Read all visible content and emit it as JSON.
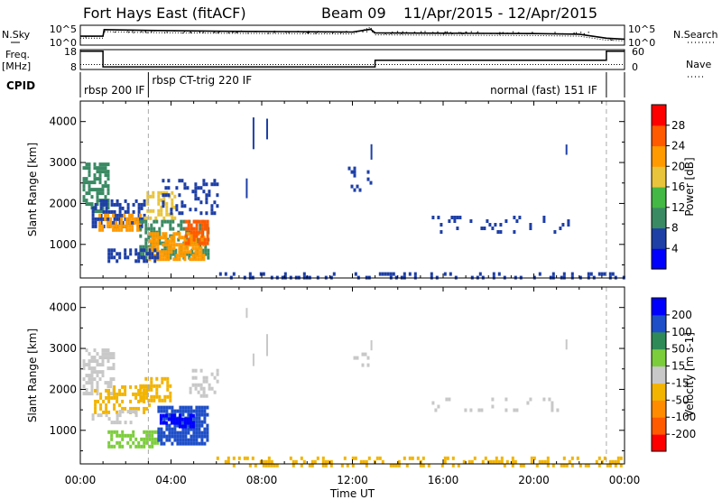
{
  "header": {
    "station": "Fort Hays East (fitACF)",
    "beam": "Beam 09",
    "dates": "11/Apr/2015 - 12/Apr/2015"
  },
  "left_labels": {
    "nsky": "N.Sky",
    "freq_top": "Freq.",
    "freq_unit": "[MHz]",
    "cpid": "CPID"
  },
  "right_labels": {
    "nsearch": "N.Search",
    "nave": "Nave"
  },
  "chart_data": [
    {
      "type": "line",
      "panel": "noise",
      "series": [
        {
          "name": "N.Sky",
          "x": [
            0,
            1,
            1.05,
            3,
            6,
            9,
            12,
            12.8,
            13,
            16,
            20,
            22,
            23.2,
            24
          ],
          "y": [
            0.45,
            0.45,
            0.78,
            0.74,
            0.7,
            0.68,
            0.66,
            0.8,
            0.62,
            0.6,
            0.58,
            0.55,
            0.35,
            0.3
          ]
        },
        {
          "name": "N.Search",
          "x": [
            0,
            1,
            1.05,
            3,
            6,
            9,
            12,
            12.8,
            13,
            16,
            20,
            22,
            23.2,
            24
          ],
          "y": [
            0.35,
            0.35,
            0.68,
            0.63,
            0.6,
            0.58,
            0.56,
            0.9,
            0.52,
            0.5,
            0.48,
            0.45,
            0.25,
            0.22
          ]
        }
      ],
      "yticks_left": [
        "10^5",
        "10^0"
      ],
      "yticks_right": [
        "10^5",
        "10^0"
      ]
    },
    {
      "type": "line",
      "panel": "frequency",
      "series": [
        {
          "name": "Freq.",
          "x": [
            0,
            1,
            1,
            13,
            13,
            23.2,
            23.2,
            24
          ],
          "y": [
            18,
            18,
            8.6,
            8.6,
            12.6,
            12.6,
            18,
            18
          ]
        },
        {
          "name": "Nave",
          "x": [
            0,
            24
          ],
          "y": [
            15,
            15
          ]
        }
      ],
      "yticks_left": [
        18,
        8
      ],
      "yticks_right": [
        60,
        0
      ]
    },
    {
      "type": "table",
      "panel": "cpid",
      "segments": [
        {
          "label": "rbsp 200 IF",
          "start": 0,
          "end": 3
        },
        {
          "label": "rbsp CT-trig 220 IF",
          "start": 3,
          "end": 23.2
        },
        {
          "label": "normal (fast) 151 IF",
          "start": 13,
          "end": 23.2
        }
      ]
    },
    {
      "type": "heatmap",
      "panel": "power",
      "ylabel": "Slant Range [km]",
      "ylim": [
        180,
        4500
      ],
      "yticks": [
        1000,
        2000,
        3000,
        4000
      ],
      "xlim": [
        0,
        24
      ],
      "colorbar": {
        "label": "Power [dB]",
        "ticks": [
          4,
          8,
          12,
          16,
          20,
          24,
          28
        ],
        "colors": [
          "#0000ff",
          "#1e3fa6",
          "#3a8a64",
          "#44b844",
          "#e8c43c",
          "#ff9a00",
          "#ff5a00",
          "#ff0000"
        ]
      },
      "blobs": [
        {
          "x": [
            0.1,
            1.2
          ],
          "y": [
            1800,
            3000
          ],
          "color": "#3a8a64",
          "density": 0.6
        },
        {
          "x": [
            0.5,
            2.8
          ],
          "y": [
            1400,
            2100
          ],
          "color": "#1e3fa6",
          "density": 0.55
        },
        {
          "x": [
            0.8,
            2.6
          ],
          "y": [
            1350,
            1750
          ],
          "color": "#ff9a00",
          "density": 0.7
        },
        {
          "x": [
            2.8,
            4.2
          ],
          "y": [
            1650,
            2300
          ],
          "color": "#e8c43c",
          "density": 0.5
        },
        {
          "x": [
            2.6,
            5.6
          ],
          "y": [
            700,
            1600
          ],
          "color": "#3a8a64",
          "density": 0.55
        },
        {
          "x": [
            3.0,
            5.4
          ],
          "y": [
            650,
            1300
          ],
          "color": "#ff9a00",
          "density": 0.75
        },
        {
          "x": [
            4.6,
            5.6
          ],
          "y": [
            1000,
            1600
          ],
          "color": "#ff5a00",
          "density": 0.7
        },
        {
          "x": [
            1.2,
            3.4
          ],
          "y": [
            550,
            900
          ],
          "color": "#1e3fa6",
          "density": 0.5
        },
        {
          "x": [
            3.6,
            6.0
          ],
          "y": [
            1800,
            2600
          ],
          "color": "#1e3fa6",
          "density": 0.3
        },
        {
          "x": [
            11.8,
            12.8
          ],
          "y": [
            2300,
            2900
          ],
          "color": "#1e3fa6",
          "density": 0.15
        },
        {
          "x": [
            15.5,
            21.5
          ],
          "y": [
            1300,
            1700
          ],
          "color": "#1e3fa6",
          "density": 0.12
        },
        {
          "x": [
            6.0,
            24.0
          ],
          "y": [
            180,
            320
          ],
          "color": "#1e3fa6",
          "density": 0.25
        }
      ]
    },
    {
      "type": "heatmap",
      "panel": "velocity",
      "ylabel": "Slant Range [km]",
      "ylim": [
        180,
        4500
      ],
      "yticks": [
        1000,
        2000,
        3000,
        4000
      ],
      "xlabel": "Time UT",
      "xlim": [
        0,
        24
      ],
      "xticks": [
        "00:00",
        "04:00",
        "08:00",
        "12:00",
        "16:00",
        "20:00",
        "00:00"
      ],
      "colorbar": {
        "label": "Velocity [m s-1]",
        "ticks": [
          -200,
          -100,
          -50,
          -15,
          15,
          50,
          100,
          200
        ],
        "colors": [
          "#ff0000",
          "#ff5a00",
          "#ff8c00",
          "#f2b400",
          "#c8c8c8",
          "#7ccd3c",
          "#2e8b57",
          "#1e4fc8",
          "#0000ff"
        ]
      },
      "blobs": [
        {
          "x": [
            0.1,
            1.5
          ],
          "y": [
            1900,
            3000
          ],
          "color": "#c8c8c8",
          "density": 0.55
        },
        {
          "x": [
            0.6,
            3.0
          ],
          "y": [
            1400,
            2100
          ],
          "color": "#f2b400",
          "density": 0.5
        },
        {
          "x": [
            2.6,
            4.0
          ],
          "y": [
            1700,
            2300
          ],
          "color": "#f2b400",
          "density": 0.6
        },
        {
          "x": [
            1.2,
            3.5
          ],
          "y": [
            600,
            1000
          ],
          "color": "#7ccd3c",
          "density": 0.6
        },
        {
          "x": [
            3.4,
            5.6
          ],
          "y": [
            700,
            1600
          ],
          "color": "#1e4fc8",
          "density": 0.85
        },
        {
          "x": [
            3.5,
            5.0
          ],
          "y": [
            1100,
            1400
          ],
          "color": "#0000ff",
          "density": 0.6
        },
        {
          "x": [
            0.5,
            2.5
          ],
          "y": [
            1200,
            1500
          ],
          "color": "#c8c8c8",
          "density": 0.4
        },
        {
          "x": [
            4.8,
            6.0
          ],
          "y": [
            1800,
            2500
          ],
          "color": "#c8c8c8",
          "density": 0.25
        },
        {
          "x": [
            11.8,
            12.8
          ],
          "y": [
            2300,
            2900
          ],
          "color": "#c8c8c8",
          "density": 0.15
        },
        {
          "x": [
            15.5,
            21.5
          ],
          "y": [
            1450,
            1800
          ],
          "color": "#c8c8c8",
          "density": 0.12
        },
        {
          "x": [
            6.0,
            24.0
          ],
          "y": [
            180,
            360
          ],
          "color": "#f2b400",
          "density": 0.3
        }
      ]
    }
  ]
}
